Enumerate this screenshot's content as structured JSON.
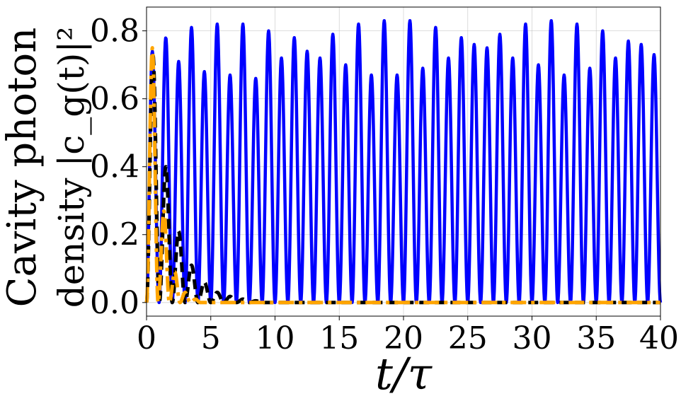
{
  "chart_data": {
    "type": "line",
    "xlabel": "t/τ",
    "ylabel_line1": "Cavity photon",
    "ylabel_line2": "density |c_g(t)|²",
    "xlim": [
      0,
      40
    ],
    "ylim": [
      -0.04,
      0.87
    ],
    "x_ticks": [
      0,
      5,
      10,
      15,
      20,
      25,
      30,
      35,
      40
    ],
    "y_ticks": [
      0.0,
      0.2,
      0.4,
      0.6,
      0.8
    ],
    "x_tick_labels": [
      "0",
      "5",
      "10",
      "15",
      "20",
      "25",
      "30",
      "35",
      "40"
    ],
    "y_tick_labels": [
      "0.0",
      "0.2",
      "0.4",
      "0.6",
      "0.8"
    ],
    "grid": true,
    "legend": "none",
    "series": [
      {
        "color": "#0000ff",
        "style": "solid",
        "peaks": [
          {
            "x": 0.45,
            "y": 0.74
          },
          {
            "x": 1.5,
            "y": 0.78
          },
          {
            "x": 2.5,
            "y": 0.71
          },
          {
            "x": 3.5,
            "y": 0.81
          },
          {
            "x": 4.5,
            "y": 0.68
          },
          {
            "x": 5.5,
            "y": 0.82
          },
          {
            "x": 6.5,
            "y": 0.67
          },
          {
            "x": 7.5,
            "y": 0.82
          },
          {
            "x": 8.5,
            "y": 0.66
          },
          {
            "x": 9.5,
            "y": 0.8
          },
          {
            "x": 10.5,
            "y": 0.72
          },
          {
            "x": 11.5,
            "y": 0.78
          },
          {
            "x": 12.5,
            "y": 0.74
          },
          {
            "x": 13.5,
            "y": 0.72
          },
          {
            "x": 14.5,
            "y": 0.79
          },
          {
            "x": 15.5,
            "y": 0.7
          },
          {
            "x": 16.5,
            "y": 0.82
          },
          {
            "x": 17.5,
            "y": 0.67
          },
          {
            "x": 18.5,
            "y": 0.83
          },
          {
            "x": 19.5,
            "y": 0.67
          },
          {
            "x": 20.5,
            "y": 0.83
          },
          {
            "x": 21.5,
            "y": 0.69
          },
          {
            "x": 22.5,
            "y": 0.81
          },
          {
            "x": 23.5,
            "y": 0.72
          },
          {
            "x": 24.5,
            "y": 0.78
          },
          {
            "x": 25.5,
            "y": 0.76
          },
          {
            "x": 26.5,
            "y": 0.75
          },
          {
            "x": 27.5,
            "y": 0.79
          },
          {
            "x": 28.5,
            "y": 0.72
          },
          {
            "x": 29.5,
            "y": 0.82
          },
          {
            "x": 30.5,
            "y": 0.7
          },
          {
            "x": 31.5,
            "y": 0.83
          },
          {
            "x": 32.5,
            "y": 0.67
          },
          {
            "x": 33.5,
            "y": 0.82
          },
          {
            "x": 34.5,
            "y": 0.69
          },
          {
            "x": 35.5,
            "y": 0.8
          },
          {
            "x": 36.5,
            "y": 0.72
          },
          {
            "x": 37.5,
            "y": 0.77
          },
          {
            "x": 38.5,
            "y": 0.76
          },
          {
            "x": 39.5,
            "y": 0.73
          }
        ]
      },
      {
        "color": "#000000",
        "style": "dashed",
        "peaks": [
          {
            "x": 0.5,
            "y": 0.73
          },
          {
            "x": 1.5,
            "y": 0.4
          },
          {
            "x": 2.5,
            "y": 0.21
          },
          {
            "x": 3.5,
            "y": 0.11
          },
          {
            "x": 4.5,
            "y": 0.06
          },
          {
            "x": 5.5,
            "y": 0.03
          },
          {
            "x": 6.5,
            "y": 0.018
          },
          {
            "x": 7.5,
            "y": 0.01
          },
          {
            "x": 8.5,
            "y": 0.005
          }
        ]
      },
      {
        "color": "#ffa500",
        "style": "dashdot",
        "peaks": [
          {
            "x": 0.45,
            "y": 0.75
          },
          {
            "x": 1.35,
            "y": 0.27
          },
          {
            "x": 2.2,
            "y": 0.09
          },
          {
            "x": 3.0,
            "y": 0.03
          },
          {
            "x": 3.8,
            "y": 0.01
          }
        ]
      }
    ]
  }
}
